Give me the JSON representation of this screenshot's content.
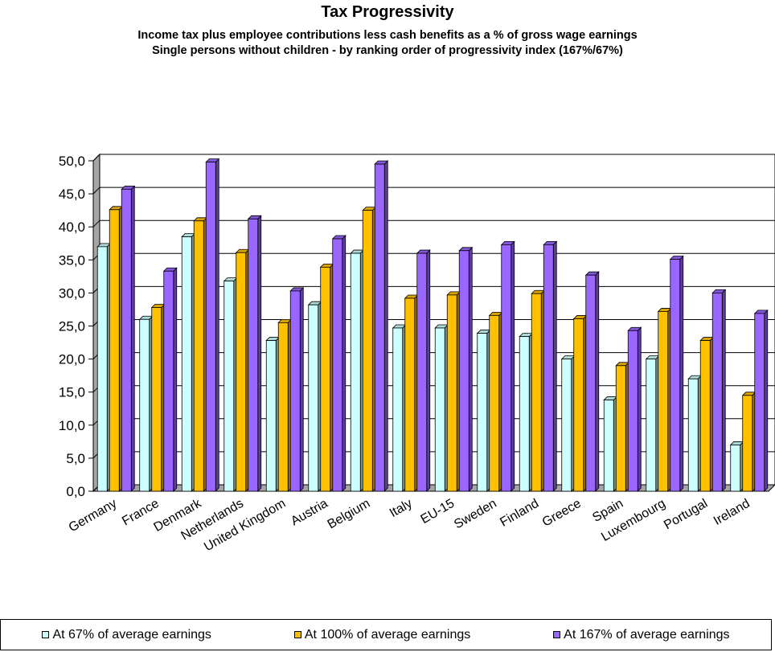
{
  "chart_data": {
    "type": "bar",
    "title": "Tax Progressivity",
    "subtitle_lines": [
      "Income tax plus employee contributions less cash benefits as a % of gross wage earnings",
      "Single persons without children - by ranking order of progressivity index (167%/67%)"
    ],
    "categories": [
      "Germany",
      "France",
      "Denmark",
      "Netherlands",
      "United Kingdom",
      "Austria",
      "Belgium",
      "Italy",
      "EU-15",
      "Sweden",
      "Finland",
      "Greece",
      "Spain",
      "Luxembourg",
      "Portugal",
      "Ireland"
    ],
    "series": [
      {
        "name": "At 67% of average earnings",
        "color": "#ccffff",
        "values": [
          37.0,
          26.0,
          38.5,
          31.8,
          22.8,
          28.2,
          36.0,
          24.7,
          24.7,
          23.9,
          23.4,
          20.0,
          13.8,
          20.0,
          17.0,
          7.0
        ]
      },
      {
        "name": "At 100% of average earnings",
        "color": "#ffc000",
        "values": [
          42.6,
          27.8,
          40.9,
          36.1,
          25.5,
          33.9,
          42.5,
          29.2,
          29.7,
          26.6,
          29.9,
          26.1,
          19.0,
          27.2,
          22.8,
          14.5
        ]
      },
      {
        "name": "At 167% of average earnings",
        "color": "#9966ff",
        "values": [
          45.7,
          33.3,
          49.8,
          41.2,
          30.3,
          38.2,
          49.5,
          36.0,
          36.4,
          37.3,
          37.3,
          32.7,
          24.3,
          35.1,
          30.0,
          26.9
        ]
      }
    ],
    "ylim": [
      0,
      50
    ],
    "yticks": [
      "0,0",
      "5,0",
      "10,0",
      "15,0",
      "20,0",
      "25,0",
      "30,0",
      "35,0",
      "40,0",
      "45,0",
      "50,0"
    ],
    "grid": true,
    "legend_position": "bottom",
    "xlabel": "",
    "ylabel": ""
  }
}
